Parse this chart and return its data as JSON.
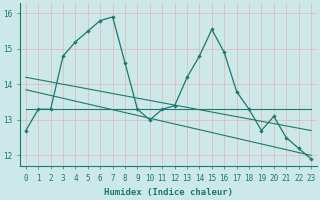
{
  "xlabel": "Humidex (Indice chaleur)",
  "bg_color": "#cce8e8",
  "grid_color": "#e8b4b4",
  "line_color": "#1a7a6e",
  "xlim": [
    -0.5,
    23.5
  ],
  "ylim": [
    11.7,
    16.3
  ],
  "yticks": [
    12,
    13,
    14,
    15,
    16
  ],
  "xticks": [
    0,
    1,
    2,
    3,
    4,
    5,
    6,
    7,
    8,
    9,
    10,
    11,
    12,
    13,
    14,
    15,
    16,
    17,
    18,
    19,
    20,
    21,
    22,
    23
  ],
  "series1_x": [
    0,
    1,
    2,
    3,
    4,
    5,
    6,
    7,
    8,
    9,
    10,
    11,
    12,
    13,
    14,
    15,
    16,
    17,
    18,
    19,
    20,
    21,
    22,
    23
  ],
  "series1_y": [
    12.7,
    13.3,
    13.3,
    14.8,
    15.2,
    15.5,
    15.8,
    15.9,
    14.6,
    13.3,
    13.0,
    13.3,
    13.4,
    14.2,
    14.8,
    15.55,
    14.9,
    13.8,
    13.3,
    12.7,
    13.1,
    12.5,
    12.2,
    11.9
  ],
  "flat_y": 13.3,
  "reg1_start": 14.2,
  "reg1_end": 12.7,
  "reg2_start": 13.85,
  "reg2_end": 12.0,
  "xlabel_fontsize": 6.5,
  "tick_fontsize": 5.5
}
